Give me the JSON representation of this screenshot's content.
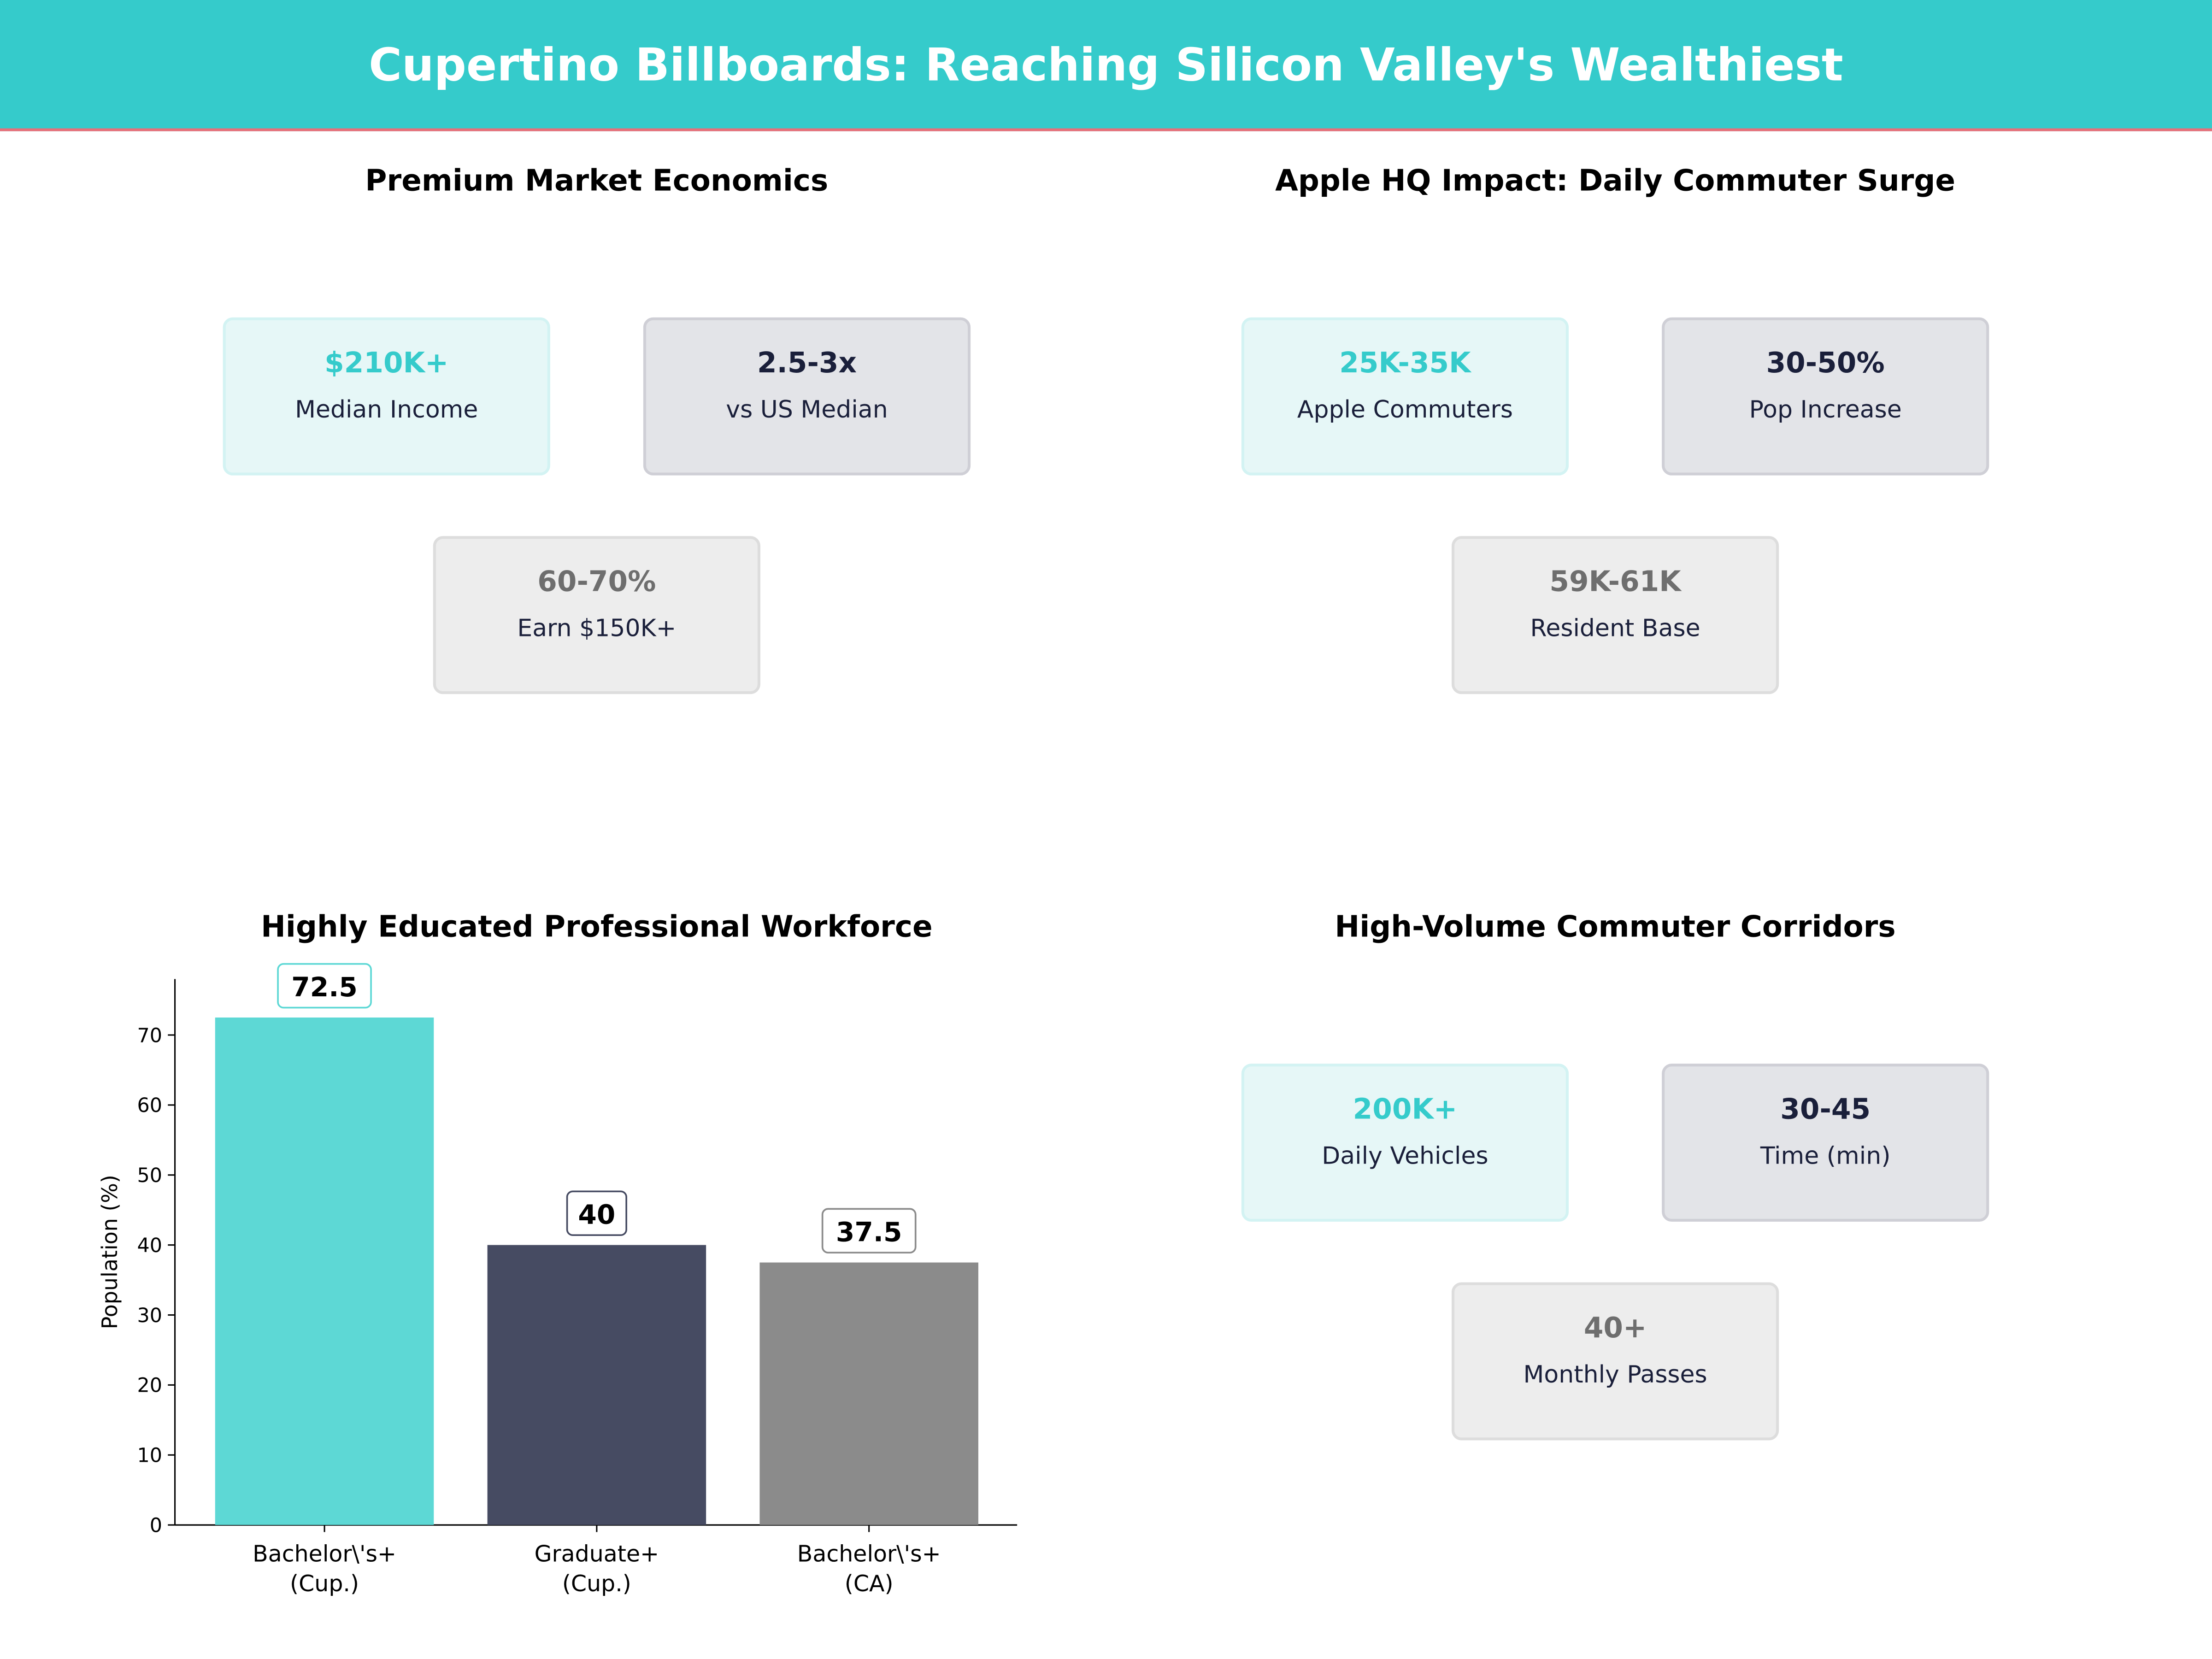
{
  "title": "Cupertino Billboards: Reaching Silicon Valley's Wealthiest",
  "colors": {
    "accent": "#35CBCB",
    "dark": "#464B62",
    "gray": "#8B8B8B",
    "header_line": "#E8707A"
  },
  "panels": [
    {
      "title": "Premium Market Economics",
      "cards": [
        {
          "value": "$210K+",
          "label": "Median Income"
        },
        {
          "value": "2.5-3x",
          "label": "vs US Median"
        },
        {
          "value": "60-70%",
          "label": "Earn $150K+"
        }
      ]
    },
    {
      "title": "Apple HQ Impact: Daily Commuter Surge",
      "cards": [
        {
          "value": "25K-35K",
          "label": "Apple Commuters"
        },
        {
          "value": "30-50%",
          "label": "Pop Increase"
        },
        {
          "value": "59K-61K",
          "label": "Resident Base"
        }
      ]
    },
    {
      "title": "High-Volume Commuter Corridors",
      "cards": [
        {
          "value": "200K+",
          "label": "Daily Vehicles"
        },
        {
          "value": "30-45",
          "label": "Time (min)"
        },
        {
          "value": "40+",
          "label": "Monthly Passes"
        }
      ]
    }
  ],
  "chart_data": {
    "type": "bar",
    "title": "Highly Educated Professional Workforce",
    "xlabel": "",
    "ylabel": "Population (%)",
    "categories": [
      [
        "Bachelor\\'s+",
        "(Cup.)"
      ],
      [
        "Graduate+",
        "(Cup.)"
      ],
      [
        "Bachelor\\'s+",
        "(CA)"
      ]
    ],
    "values": [
      72.5,
      40,
      37.5
    ],
    "value_labels": [
      "72.5",
      "40",
      "37.5"
    ],
    "bar_colors": [
      "#5DD8D5",
      "#464B62",
      "#8B8B8B"
    ],
    "ylim": [
      0,
      78
    ],
    "yticks": [
      0,
      10,
      20,
      30,
      40,
      50,
      60,
      70
    ],
    "grid": false
  }
}
